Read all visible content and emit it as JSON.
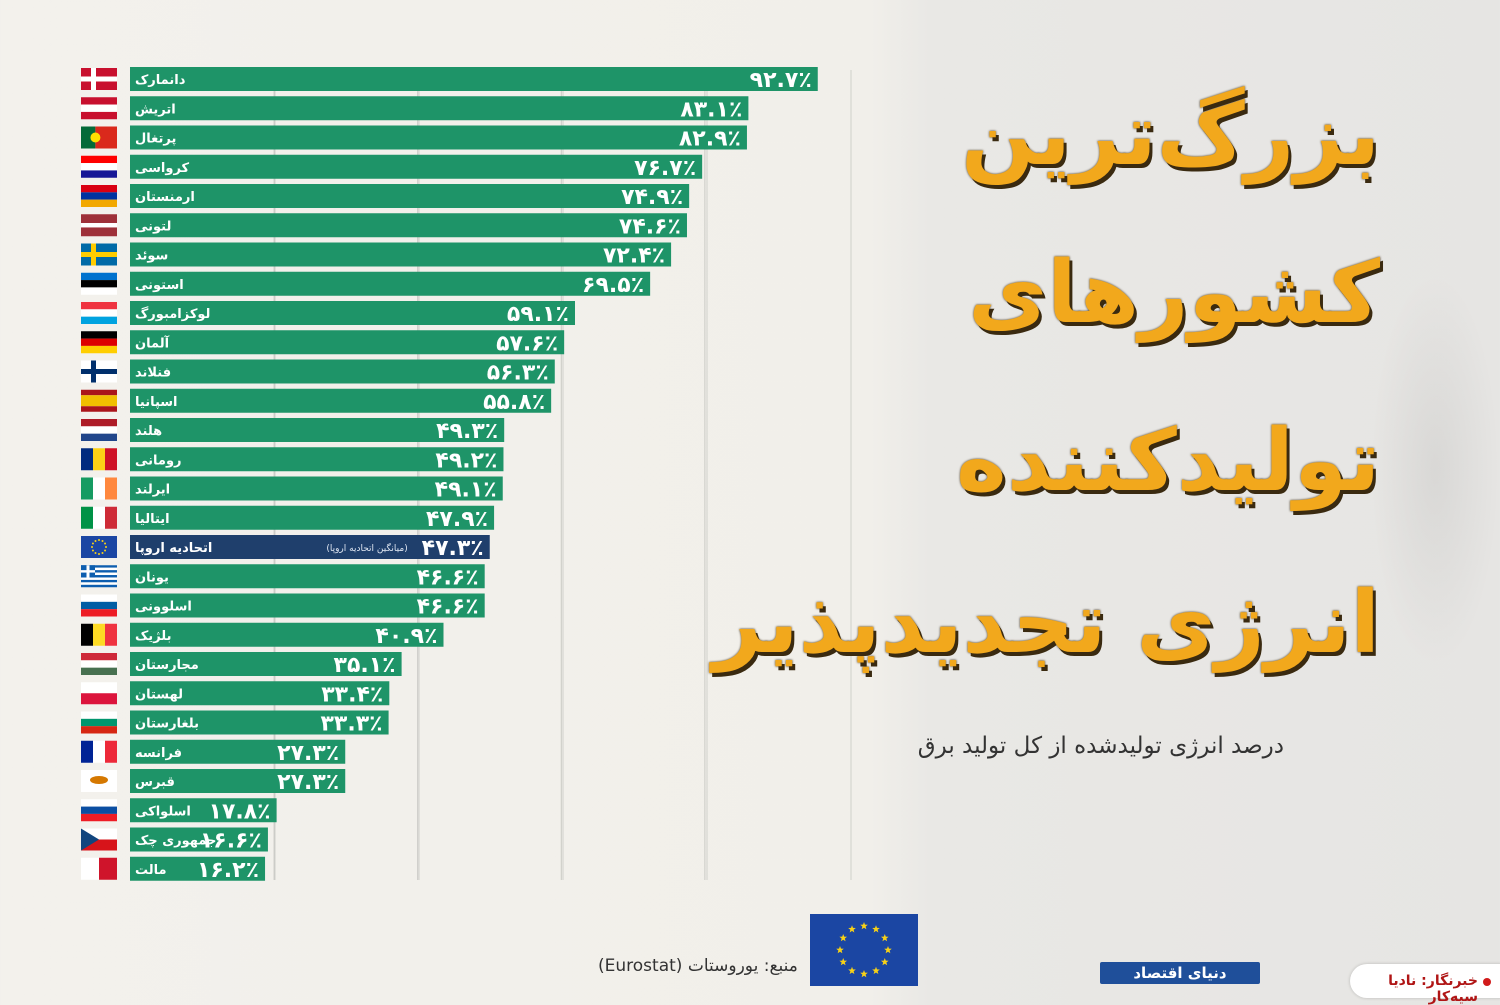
{
  "title_lines": [
    "بزرگ‌ترین",
    "کشورهای",
    "تولیدکننده",
    "انرژی تجدیدپذیر"
  ],
  "subtitle": "درصد انرژی تولیدشده از کل تولید برق",
  "source": "منبع: یوروستات (Eurostat)",
  "logo": "دنیای اقتصاد",
  "credit": "خبرنگار: نادیا سیه‌کار",
  "colors": {
    "bar": "#1e9468",
    "bar_highlight": "#1f3f6c",
    "title": "#f2a81c",
    "title_shadow": "#3a2a10",
    "eu_blue": "#1b46a3",
    "eu_star": "#f7d117"
  },
  "chart_data": {
    "type": "bar",
    "orientation": "horizontal",
    "unit": "%",
    "xlim": [
      0,
      100
    ],
    "gridlines_at": [
      0,
      25,
      50,
      75,
      100
    ],
    "highlight_note": "(میانگین اتحادیه اروپا)",
    "categories": [
      "دانمارک",
      "اتریش",
      "پرتغال",
      "کرواسی",
      "ارمنستان",
      "لتونی",
      "سوئد",
      "استونی",
      "لوکزامبورگ",
      "آلمان",
      "فنلاند",
      "اسپانیا",
      "هلند",
      "رومانی",
      "ایرلند",
      "ایتالیا",
      "اتحادیه اروپا",
      "یونان",
      "اسلوونی",
      "بلژیک",
      "مجارستان",
      "لهستان",
      "بلغارستان",
      "فرانسه",
      "قبرس",
      "اسلواکی",
      "جمهوری چک",
      "مالت"
    ],
    "values": [
      92.7,
      83.1,
      82.9,
      76.7,
      74.9,
      74.6,
      72.4,
      69.5,
      59.1,
      57.6,
      56.3,
      55.8,
      49.3,
      49.2,
      49.1,
      47.9,
      47.3,
      46.6,
      46.6,
      40.9,
      35.1,
      33.4,
      33.3,
      27.3,
      27.3,
      17.8,
      16.6,
      16.2
    ],
    "value_labels": [
      "۹۲.۷٪",
      "۸۳.۱٪",
      "۸۲.۹٪",
      "۷۶.۷٪",
      "۷۴.۹٪",
      "۷۴.۶٪",
      "۷۲.۴٪",
      "۶۹.۵٪",
      "۵۹.۱٪",
      "۵۷.۶٪",
      "۵۶.۳٪",
      "۵۵.۸٪",
      "۴۹.۳٪",
      "۴۹.۲٪",
      "۴۹.۱٪",
      "۴۷.۹٪",
      "۴۷.۳٪",
      "۴۶.۶٪",
      "۴۶.۶٪",
      "۴۰.۹٪",
      "۳۵.۱٪",
      "۳۳.۴٪",
      "۳۳.۳٪",
      "۲۷.۳٪",
      "۲۷.۳٪",
      "۱۷.۸٪",
      "۱۶.۶٪",
      "۱۶.۲٪"
    ],
    "highlight_index": 16,
    "flags": [
      {
        "type": "cross",
        "colors": [
          "#c8102e",
          "#ffffff"
        ]
      },
      {
        "type": "h",
        "colors": [
          "#c8102e",
          "#ffffff",
          "#c8102e"
        ]
      },
      {
        "type": "pt",
        "colors": [
          "#046a38",
          "#da291c"
        ]
      },
      {
        "type": "h",
        "colors": [
          "#ff0000",
          "#ffffff",
          "#171796"
        ]
      },
      {
        "type": "h",
        "colors": [
          "#d90012",
          "#0033a0",
          "#f2a800"
        ]
      },
      {
        "type": "h3",
        "colors": [
          "#9e3039",
          "#ffffff",
          "#9e3039"
        ]
      },
      {
        "type": "cross",
        "colors": [
          "#006aa7",
          "#fecc00"
        ]
      },
      {
        "type": "h",
        "colors": [
          "#0072ce",
          "#000000",
          "#ffffff"
        ]
      },
      {
        "type": "h",
        "colors": [
          "#ef3340",
          "#ffffff",
          "#00a3e0"
        ]
      },
      {
        "type": "h",
        "colors": [
          "#000000",
          "#dd0000",
          "#ffce00"
        ]
      },
      {
        "type": "cross",
        "colors": [
          "#ffffff",
          "#002f6c"
        ]
      },
      {
        "type": "es",
        "colors": [
          "#aa151b",
          "#f1bf00",
          "#aa151b"
        ]
      },
      {
        "type": "h",
        "colors": [
          "#ae1c28",
          "#ffffff",
          "#21468b"
        ]
      },
      {
        "type": "v",
        "colors": [
          "#002b7f",
          "#fcd116",
          "#ce1126"
        ]
      },
      {
        "type": "v",
        "colors": [
          "#169b62",
          "#ffffff",
          "#ff883e"
        ]
      },
      {
        "type": "v",
        "colors": [
          "#009246",
          "#ffffff",
          "#ce2b37"
        ]
      },
      {
        "type": "eu",
        "colors": [
          "#1b46a3",
          "#f7d117"
        ]
      },
      {
        "type": "gr",
        "colors": [
          "#0d5eaf",
          "#ffffff"
        ]
      },
      {
        "type": "h",
        "colors": [
          "#ffffff",
          "#005da4",
          "#ed1c24"
        ]
      },
      {
        "type": "v",
        "colors": [
          "#000000",
          "#fdda24",
          "#ef3340"
        ]
      },
      {
        "type": "h",
        "colors": [
          "#ce2939",
          "#ffffff",
          "#477050"
        ]
      },
      {
        "type": "h2",
        "colors": [
          "#ffffff",
          "#dc143c"
        ]
      },
      {
        "type": "h",
        "colors": [
          "#ffffff",
          "#00966e",
          "#d62612"
        ]
      },
      {
        "type": "v",
        "colors": [
          "#002395",
          "#ffffff",
          "#ed2939"
        ]
      },
      {
        "type": "cy",
        "colors": [
          "#ffffff",
          "#d57800"
        ]
      },
      {
        "type": "h",
        "colors": [
          "#ffffff",
          "#0b4ea2",
          "#ee1c25"
        ]
      },
      {
        "type": "cz",
        "colors": [
          "#ffffff",
          "#d7141a",
          "#11457e"
        ]
      },
      {
        "type": "mt",
        "colors": [
          "#ffffff",
          "#cf142b"
        ]
      }
    ]
  }
}
